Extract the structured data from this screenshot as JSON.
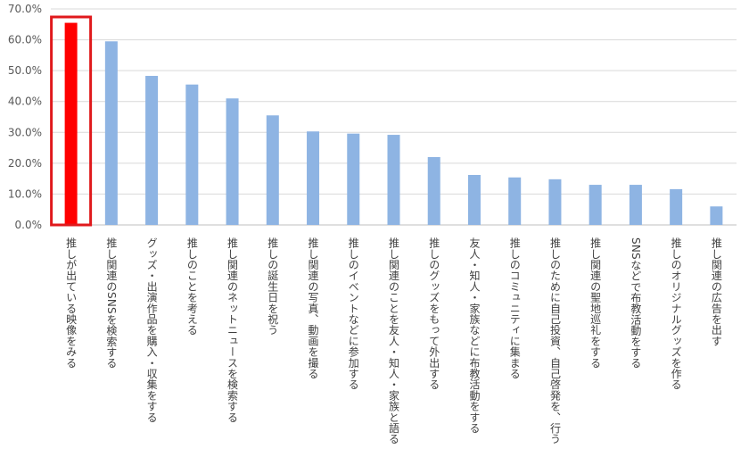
{
  "chart_data": {
    "type": "bar",
    "categories": [
      "推しが出ている映像をみる",
      "推し関連のSNSを検索する",
      "グッズ・出演作品を購入・収集をする",
      "推しのことを考える",
      "推し関連のネットニュースを検索する",
      "推しの誕生日を祝う",
      "推し関連の写真、動画を撮る",
      "推しのイベントなどに参加する",
      "推し関連のことを友人・知人・家族と語る",
      "推しのグッズをもって外出する",
      "友人・知人・家族などに布教活動をする",
      "推しのコミュニティに集まる",
      "推しのために自己投資、自己啓発を、行う",
      "推し関連の聖地巡礼をする",
      "SNSなどで布教活動をする",
      "推しのオリジナルグッズを作る",
      "推し関連の広告を出す"
    ],
    "values": [
      65.5,
      59.5,
      48.3,
      45.5,
      41.0,
      35.5,
      30.3,
      29.6,
      29.2,
      22.0,
      16.2,
      15.4,
      14.8,
      13.0,
      13.0,
      11.6,
      6.0
    ],
    "yticks": [
      "0.0%",
      "10.0%",
      "20.0%",
      "30.0%",
      "40.0%",
      "50.0%",
      "60.0%",
      "70.0%"
    ],
    "ylim": [
      0,
      70
    ],
    "title": "",
    "xlabel": "",
    "ylabel": "",
    "grid": true,
    "highlight_index": 0,
    "colors": {
      "bar": "#8eb4e3",
      "highlight_bar": "#ff0000",
      "highlight_frame": "#e0191c",
      "grid": "#d9d9d9",
      "axis_text": "#595959"
    }
  }
}
